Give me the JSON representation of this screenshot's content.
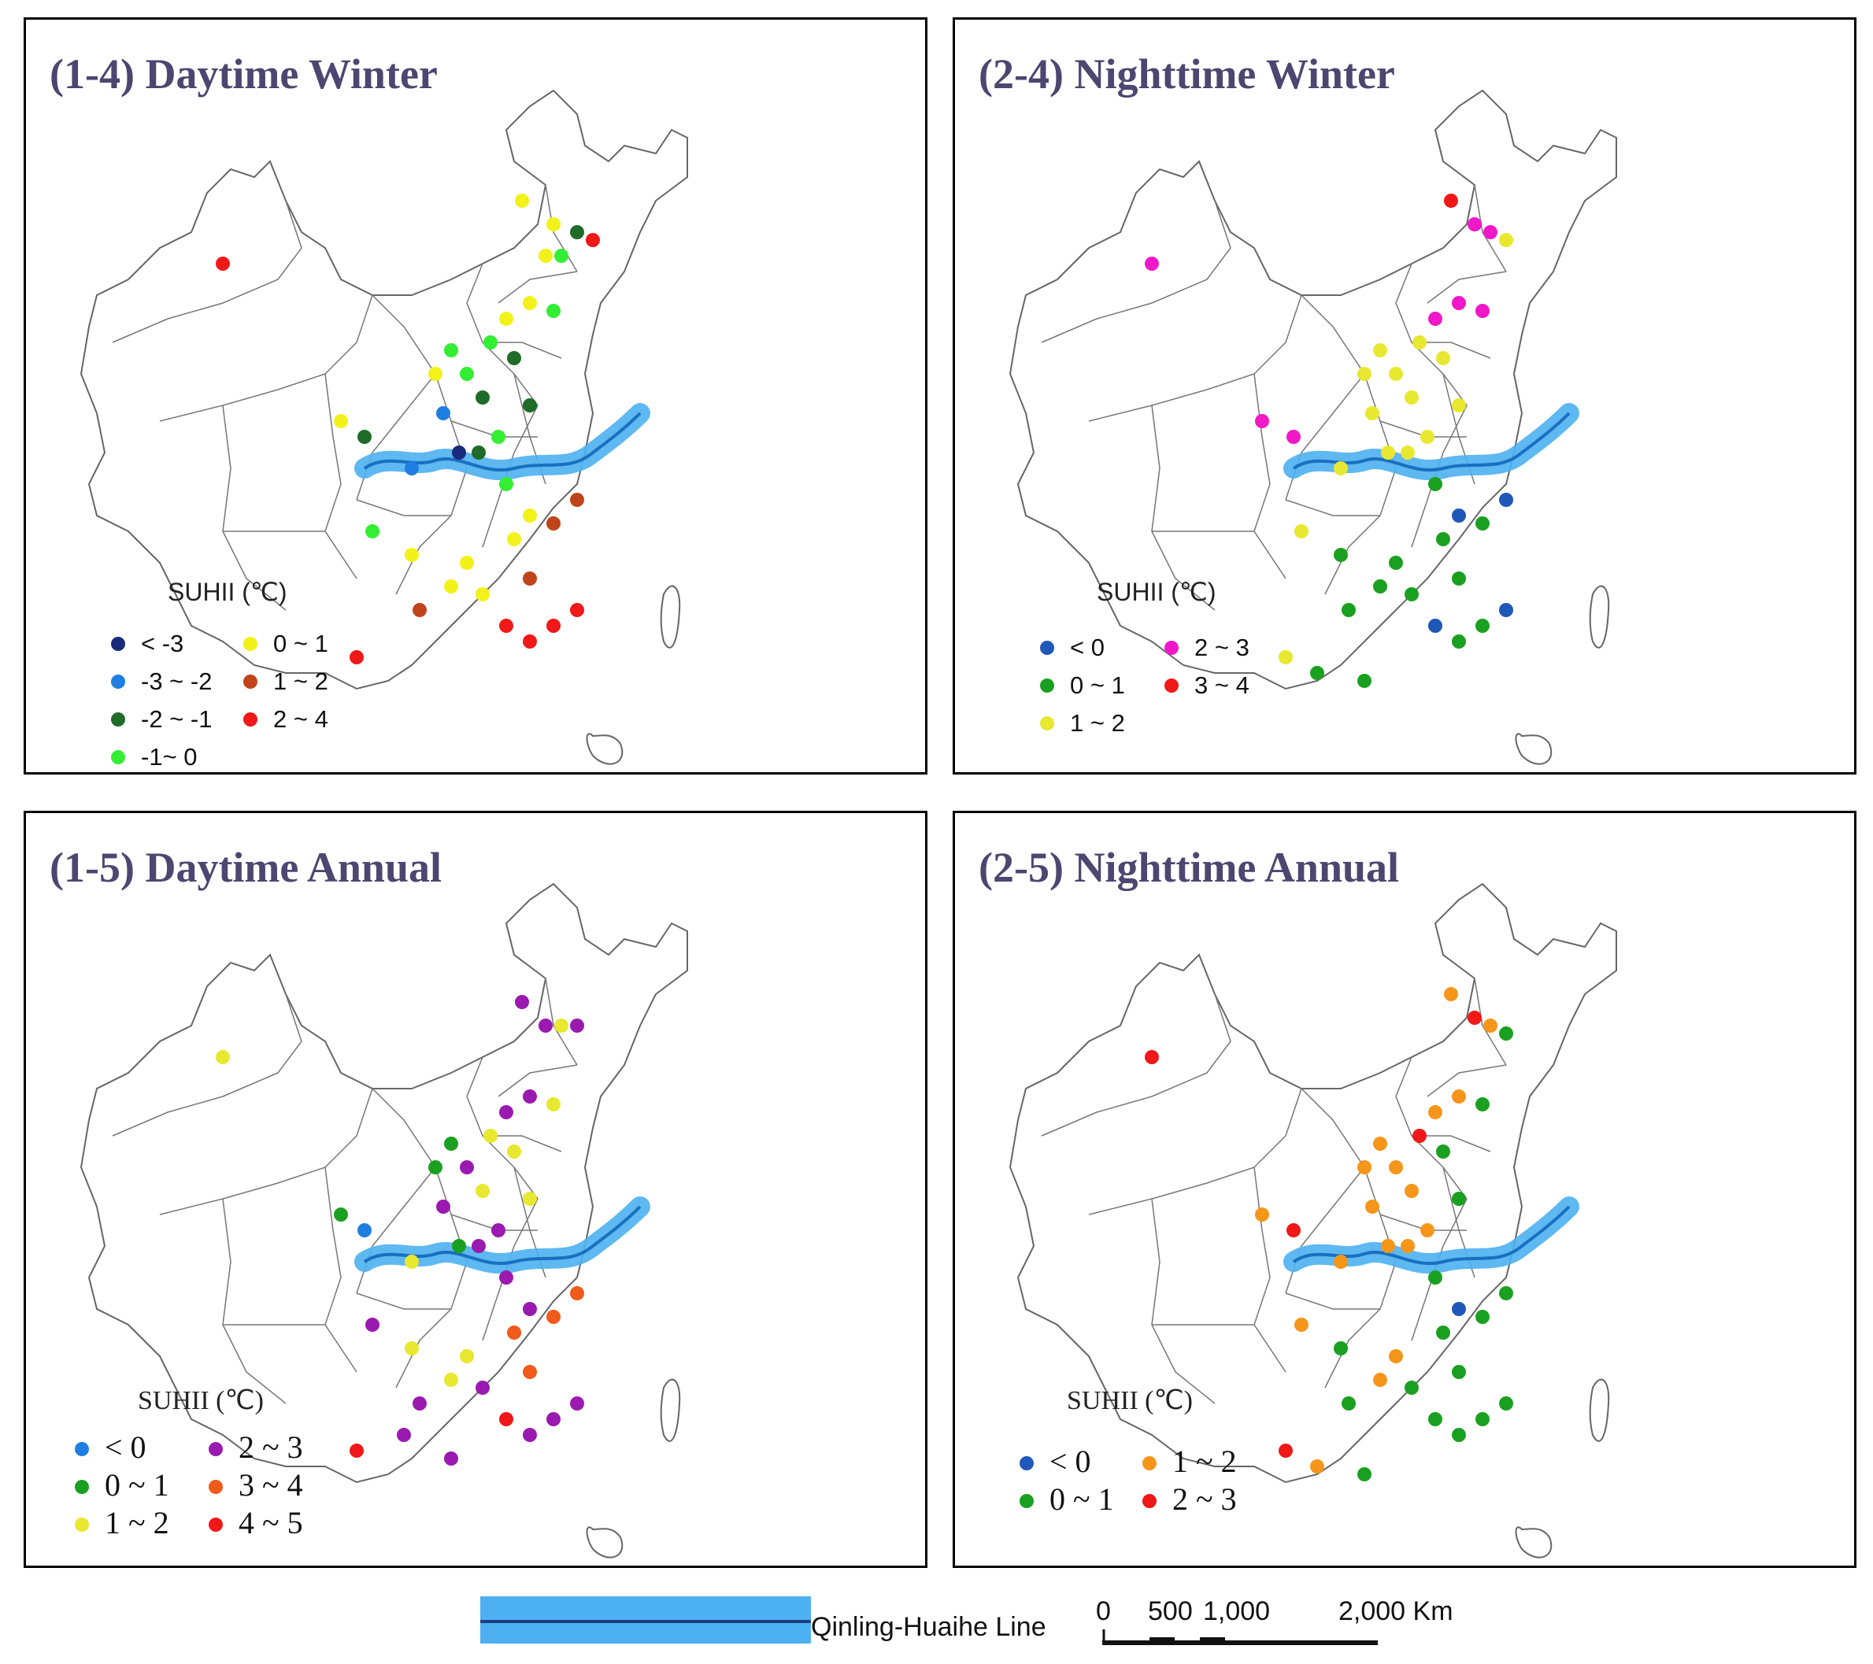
{
  "panels": [
    {
      "id": "p14",
      "title": "(1-4) Daytime Winter",
      "legend_title": "SUHII (℃)",
      "legend_style": "sans",
      "legend": [
        {
          "label": "< -3",
          "color": "#1a2a7a"
        },
        {
          "label": "-3 ~ -2",
          "color": "#1e7fe0"
        },
        {
          "label": "-2 ~ -1",
          "color": "#1f6b28"
        },
        {
          "label": "-1~ 0",
          "color": "#33ee33"
        },
        {
          "label": "0 ~ 1",
          "color": "#f2f21a"
        },
        {
          "label": "1 ~ 2",
          "color": "#c0441a"
        },
        {
          "label": "2 ~ 4",
          "color": "#f01818"
        }
      ],
      "points": [
        [
          1,
          0,
          2
        ],
        [
          2,
          3,
          0
        ],
        [
          3,
          4,
          1
        ],
        [
          4,
          4,
          4
        ],
        [
          5,
          5,
          3
        ],
        [
          6,
          6,
          1
        ],
        [
          6,
          3,
          2
        ],
        [
          7,
          5,
          3
        ],
        [
          8,
          6,
          3
        ],
        [
          8,
          4,
          2
        ],
        [
          9,
          6,
          0
        ],
        [
          10,
          2,
          3
        ],
        [
          11,
          5,
          4
        ],
        [
          11,
          7,
          2
        ],
        [
          12,
          4,
          1
        ],
        [
          12,
          6,
          5
        ],
        [
          13,
          3,
          6
        ],
        [
          14,
          5,
          5
        ],
        [
          15,
          4,
          0
        ],
        [
          15,
          2,
          3
        ],
        [
          16,
          6,
          4
        ],
        [
          17,
          5,
          5
        ],
        [
          18,
          4,
          6
        ],
        [
          19,
          2,
          4
        ],
        [
          20,
          3,
          3
        ],
        [
          21,
          4,
          6
        ],
        [
          22,
          5,
          3
        ],
        [
          22,
          3,
          2
        ],
        [
          23,
          2,
          4
        ],
        [
          24,
          6,
          6
        ],
        [
          25,
          4,
          3
        ],
        [
          26,
          2,
          2
        ],
        [
          27,
          3,
          4
        ],
        [
          28,
          5,
          5
        ],
        [
          29,
          4,
          6
        ],
        [
          30,
          2,
          6
        ]
      ]
    },
    {
      "id": "p24",
      "title": "(2-4) Nighttime Winter",
      "legend_title": "SUHII (℃)",
      "legend_style": "sans",
      "legend": [
        {
          "label": "< 0",
          "color": "#1f58b8"
        },
        {
          "label": "0 ~ 1",
          "color": "#1aa020"
        },
        {
          "label": "1 ~ 2",
          "color": "#e8e830"
        },
        {
          "label": "2 ~ 3",
          "color": "#f018c8"
        },
        {
          "label": "3 ~ 4",
          "color": "#f01818"
        }
      ]
    },
    {
      "id": "p15",
      "title": "(1-5) Daytime Annual",
      "legend_title": "SUHII (℃)",
      "legend_style": "serif",
      "legend": [
        {
          "label": "< 0",
          "color": "#1e7fe0"
        },
        {
          "label": "0 ~ 1",
          "color": "#1aa020"
        },
        {
          "label": "1 ~ 2",
          "color": "#e8e830"
        },
        {
          "label": "2 ~ 3",
          "color": "#9a1ab0"
        },
        {
          "label": "3 ~ 4",
          "color": "#f05a1a"
        },
        {
          "label": "4 ~ 5",
          "color": "#f01818"
        }
      ]
    },
    {
      "id": "p25",
      "title": "(2-5) Nighttime Annual",
      "legend_title": "SUHII (℃)",
      "legend_style": "serif",
      "legend": [
        {
          "label": "< 0",
          "color": "#1f58b8"
        },
        {
          "label": "0 ~ 1",
          "color": "#1aa020"
        },
        {
          "label": "1 ~ 2",
          "color": "#f5961a"
        },
        {
          "label": "2 ~ 3",
          "color": "#f01818"
        }
      ]
    }
  ],
  "footer": {
    "line_label": "Qinling-Huaihe Line",
    "line_color": "#1a6fc0",
    "band_color": "#4db0f0",
    "scale_labels": [
      "0",
      "500",
      "1,000",
      "2,000 Km"
    ]
  }
}
